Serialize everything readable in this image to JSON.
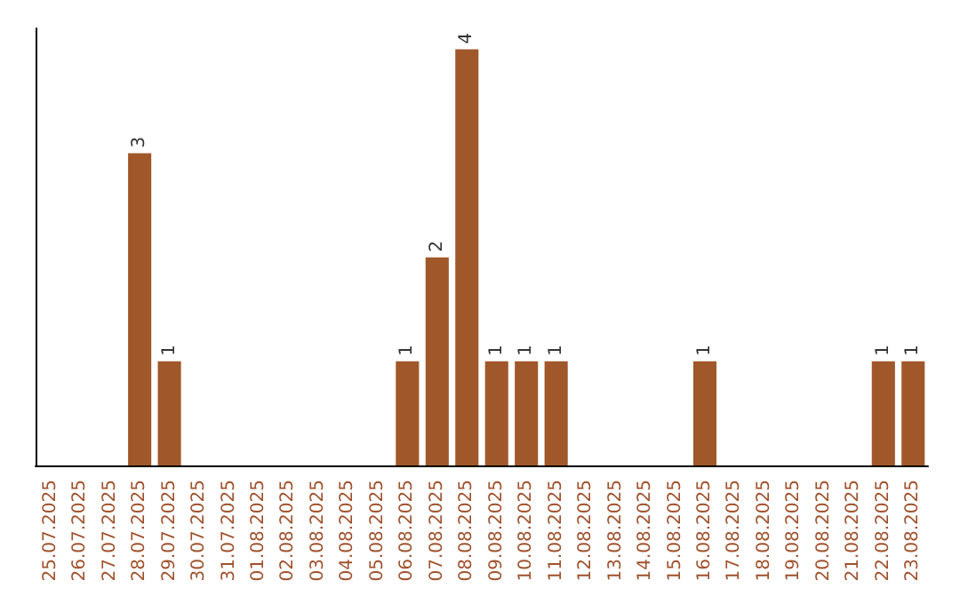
{
  "chart_data": {
    "type": "bar",
    "categories": [
      "25.07.2025",
      "26.07.2025",
      "27.07.2025",
      "28.07.2025",
      "29.07.2025",
      "30.07.2025",
      "31.07.2025",
      "01.08.2025",
      "02.08.2025",
      "03.08.2025",
      "04.08.2025",
      "05.08.2025",
      "06.08.2025",
      "07.08.2025",
      "08.08.2025",
      "09.08.2025",
      "10.08.2025",
      "11.08.2025",
      "12.08.2025",
      "13.08.2025",
      "14.08.2025",
      "15.08.2025",
      "16.08.2025",
      "17.08.2025",
      "18.08.2025",
      "19.08.2025",
      "20.08.2025",
      "21.08.2025",
      "22.08.2025",
      "23.08.2025"
    ],
    "values": [
      0,
      0,
      0,
      3,
      1,
      0,
      0,
      0,
      0,
      0,
      0,
      0,
      1,
      2,
      4,
      1,
      1,
      1,
      0,
      0,
      0,
      0,
      1,
      0,
      0,
      0,
      0,
      0,
      1,
      1
    ],
    "value_labels": [
      null,
      null,
      null,
      "3",
      "1",
      null,
      null,
      null,
      null,
      null,
      null,
      null,
      "1",
      "2",
      "4",
      "1",
      "1",
      "1",
      null,
      null,
      null,
      null,
      "1",
      null,
      null,
      null,
      null,
      null,
      "1",
      "1"
    ],
    "color": "#a0582a",
    "grid": false,
    "tick_labels": "x"
  }
}
